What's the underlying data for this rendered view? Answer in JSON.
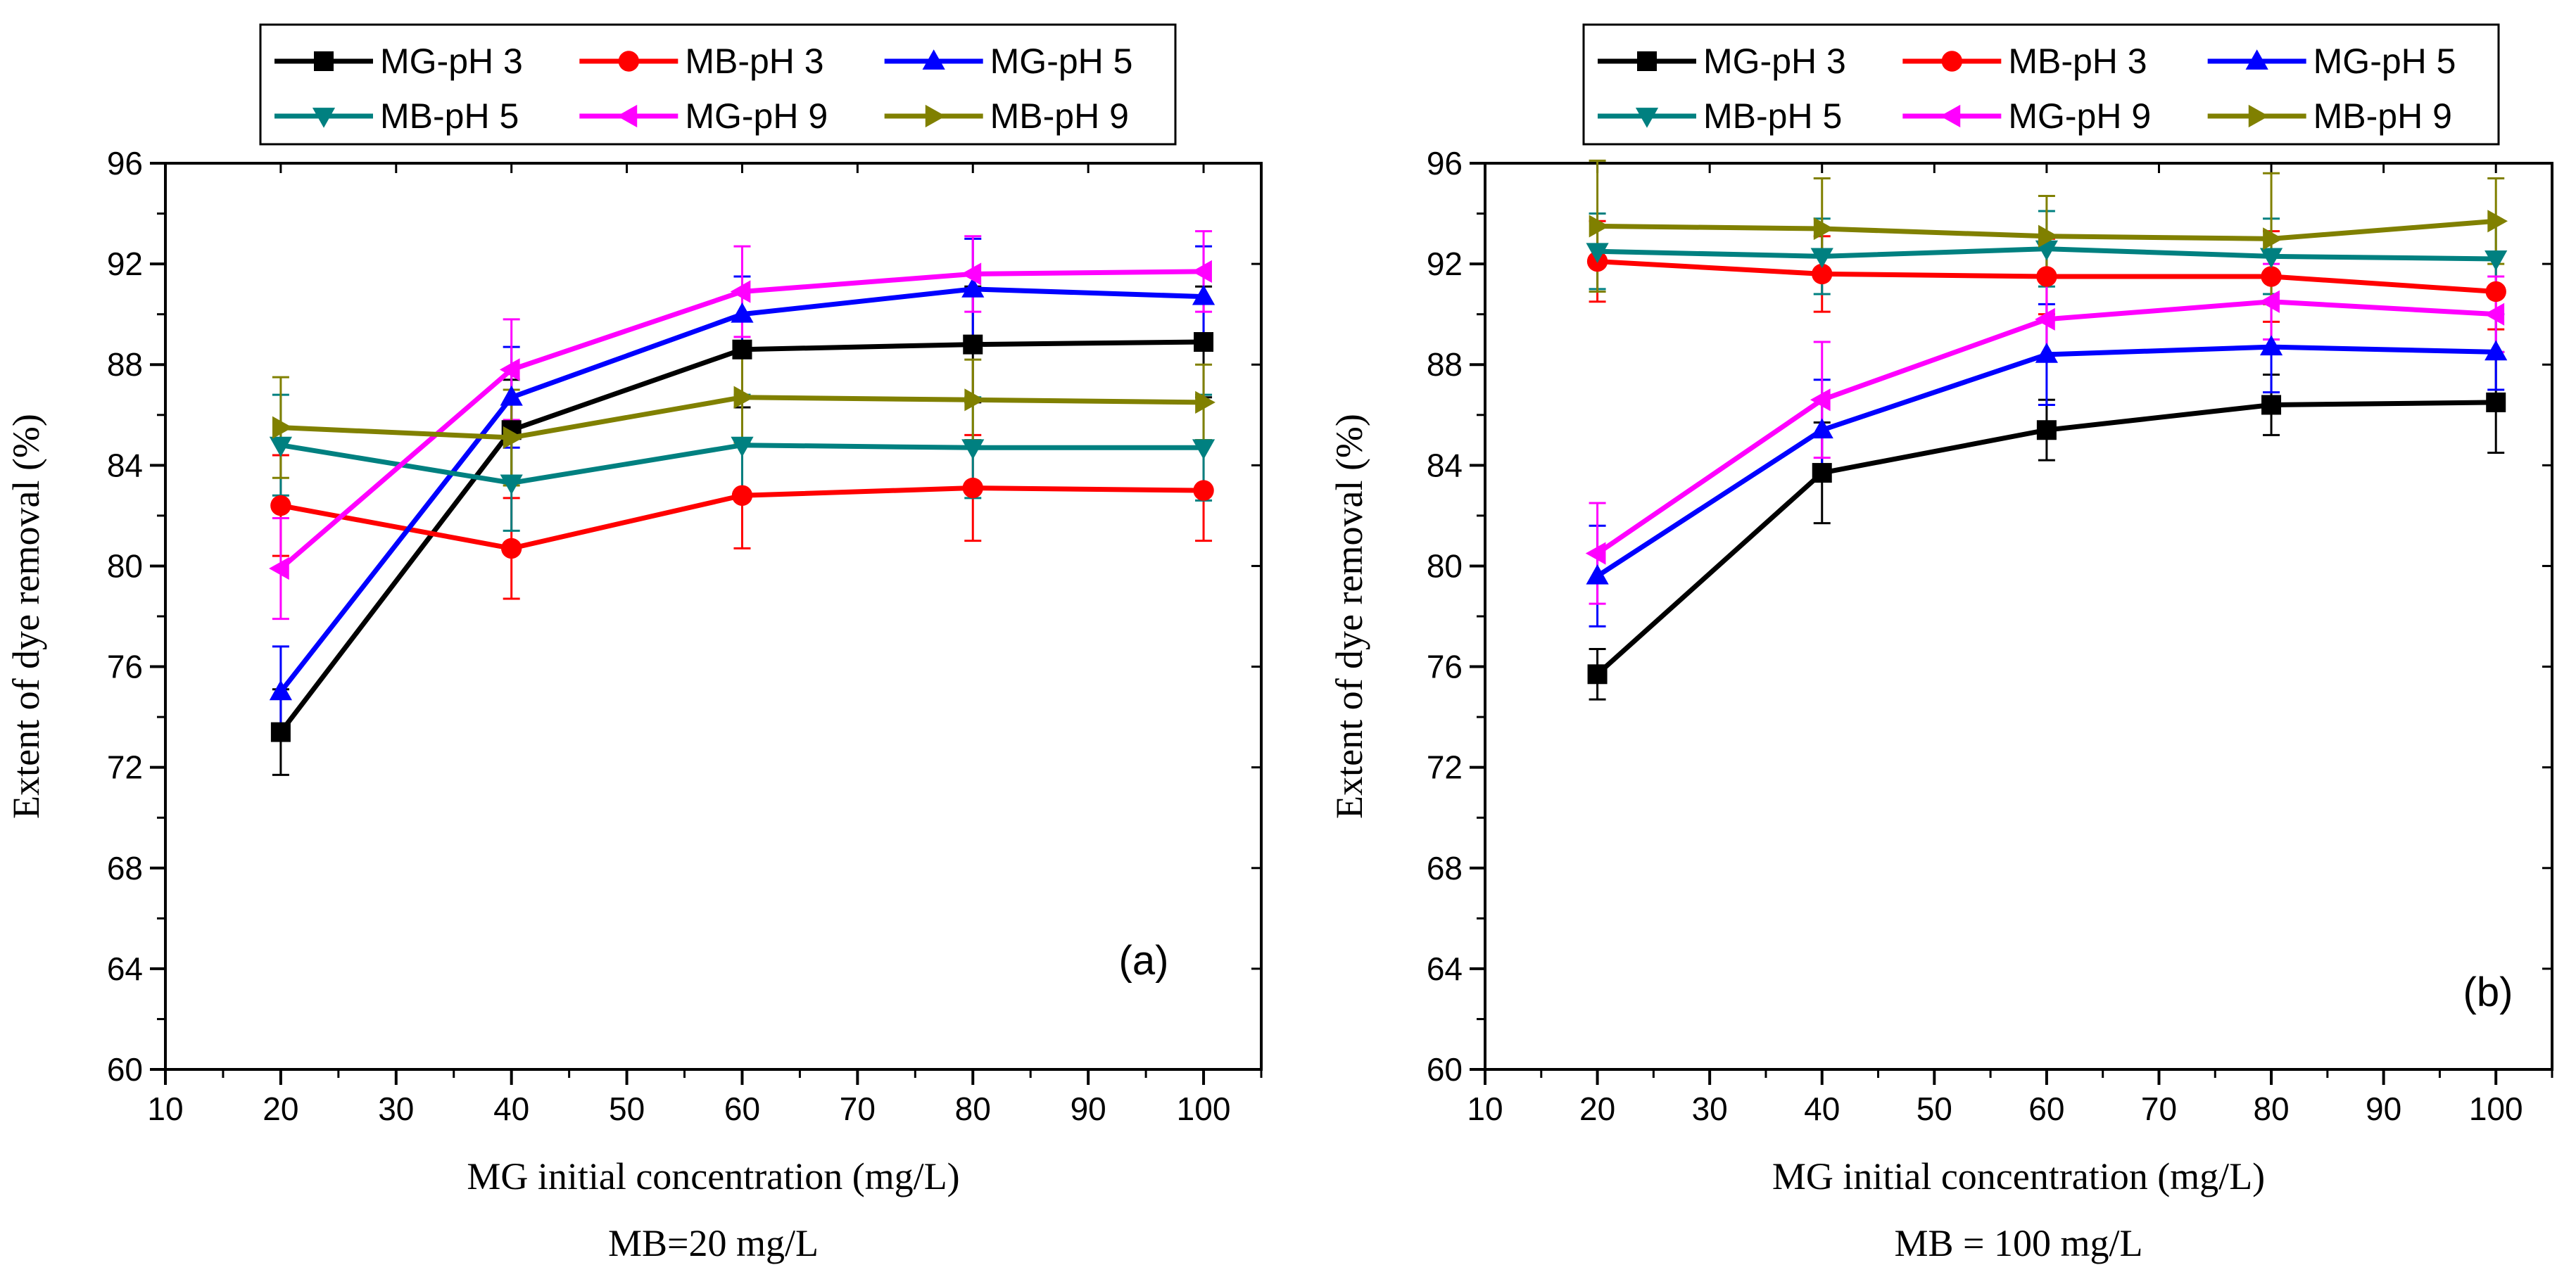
{
  "chart_data": [
    {
      "type": "line",
      "panel_label": "(a)",
      "xlabel": "MG initial concentration (mg/L)",
      "subcaption": "MB=20 mg/L",
      "ylabel": "Extent of dye removal (%)",
      "xlim": [
        10,
        105
      ],
      "ylim": [
        60,
        96
      ],
      "xticks": [
        10,
        20,
        30,
        40,
        50,
        60,
        70,
        80,
        90,
        100
      ],
      "yticks": [
        60,
        64,
        68,
        72,
        76,
        80,
        84,
        88,
        92,
        96
      ],
      "x": [
        20,
        40,
        60,
        80,
        100
      ],
      "legend_position": "top",
      "series": [
        {
          "name": "MG-pH 3",
          "color": "#000000",
          "marker": "square",
          "values": [
            73.4,
            85.4,
            88.6,
            88.8,
            88.9
          ],
          "errors": [
            1.7,
            2.0,
            2.3,
            2.3,
            2.2
          ]
        },
        {
          "name": "MB-pH 3",
          "color": "#ff0000",
          "marker": "circle",
          "values": [
            82.4,
            80.7,
            82.8,
            83.1,
            83.0
          ],
          "errors": [
            2.0,
            2.0,
            2.1,
            2.1,
            2.0
          ]
        },
        {
          "name": "MG-pH 5",
          "color": "#0000ff",
          "marker": "triangle-up",
          "values": [
            75.0,
            86.7,
            90.0,
            91.0,
            90.7
          ],
          "errors": [
            1.8,
            2.0,
            1.5,
            2.0,
            2.0
          ]
        },
        {
          "name": "MB-pH 5",
          "color": "#008080",
          "marker": "triangle-down",
          "values": [
            84.8,
            83.3,
            84.8,
            84.7,
            84.7
          ],
          "errors": [
            2.0,
            1.9,
            2.0,
            2.0,
            2.1
          ]
        },
        {
          "name": "MG-pH 9",
          "color": "#ff00ff",
          "marker": "triangle-left",
          "values": [
            79.9,
            87.8,
            90.9,
            91.6,
            91.7
          ],
          "errors": [
            2.0,
            2.0,
            1.8,
            1.5,
            1.6
          ]
        },
        {
          "name": "MB-pH 9",
          "color": "#808000",
          "marker": "triangle-right",
          "values": [
            85.5,
            85.1,
            86.7,
            86.6,
            86.5
          ],
          "errors": [
            2.0,
            1.9,
            1.8,
            1.6,
            1.5
          ]
        }
      ]
    },
    {
      "type": "line",
      "panel_label": "(b)",
      "xlabel": "MG initial concentration (mg/L)",
      "subcaption": "MB = 100 mg/L",
      "ylabel": "Extent of dye removal (%)",
      "xlim": [
        10,
        105
      ],
      "ylim": [
        60,
        96
      ],
      "xticks": [
        10,
        20,
        30,
        40,
        50,
        60,
        70,
        80,
        90,
        100
      ],
      "yticks": [
        60,
        64,
        68,
        72,
        76,
        80,
        84,
        88,
        92,
        96
      ],
      "x": [
        20,
        40,
        60,
        80,
        100
      ],
      "legend_position": "top",
      "series": [
        {
          "name": "MG-pH 3",
          "color": "#000000",
          "marker": "square",
          "values": [
            75.7,
            83.7,
            85.4,
            86.4,
            86.5
          ],
          "errors": [
            1.0,
            2.0,
            1.2,
            1.2,
            2.0
          ]
        },
        {
          "name": "MB-pH 3",
          "color": "#ff0000",
          "marker": "circle",
          "values": [
            92.1,
            91.6,
            91.5,
            91.5,
            90.9
          ],
          "errors": [
            1.6,
            1.5,
            1.5,
            1.8,
            1.5
          ]
        },
        {
          "name": "MG-pH 5",
          "color": "#0000ff",
          "marker": "triangle-up",
          "values": [
            79.6,
            85.4,
            88.4,
            88.7,
            88.5
          ],
          "errors": [
            2.0,
            2.0,
            2.0,
            1.8,
            1.5
          ]
        },
        {
          "name": "MB-pH 5",
          "color": "#008080",
          "marker": "triangle-down",
          "values": [
            92.5,
            92.3,
            92.6,
            92.3,
            92.2
          ],
          "errors": [
            1.5,
            1.5,
            1.5,
            1.5,
            1.5
          ]
        },
        {
          "name": "MG-pH 9",
          "color": "#ff00ff",
          "marker": "triangle-left",
          "values": [
            80.5,
            86.6,
            89.8,
            90.5,
            90.0
          ],
          "errors": [
            2.0,
            2.3,
            1.5,
            1.5,
            1.5
          ]
        },
        {
          "name": "MB-pH 9",
          "color": "#808000",
          "marker": "triangle-right",
          "values": [
            93.5,
            93.4,
            93.1,
            93.0,
            93.7
          ],
          "errors": [
            2.6,
            2.0,
            1.6,
            2.6,
            1.7
          ]
        }
      ]
    }
  ]
}
